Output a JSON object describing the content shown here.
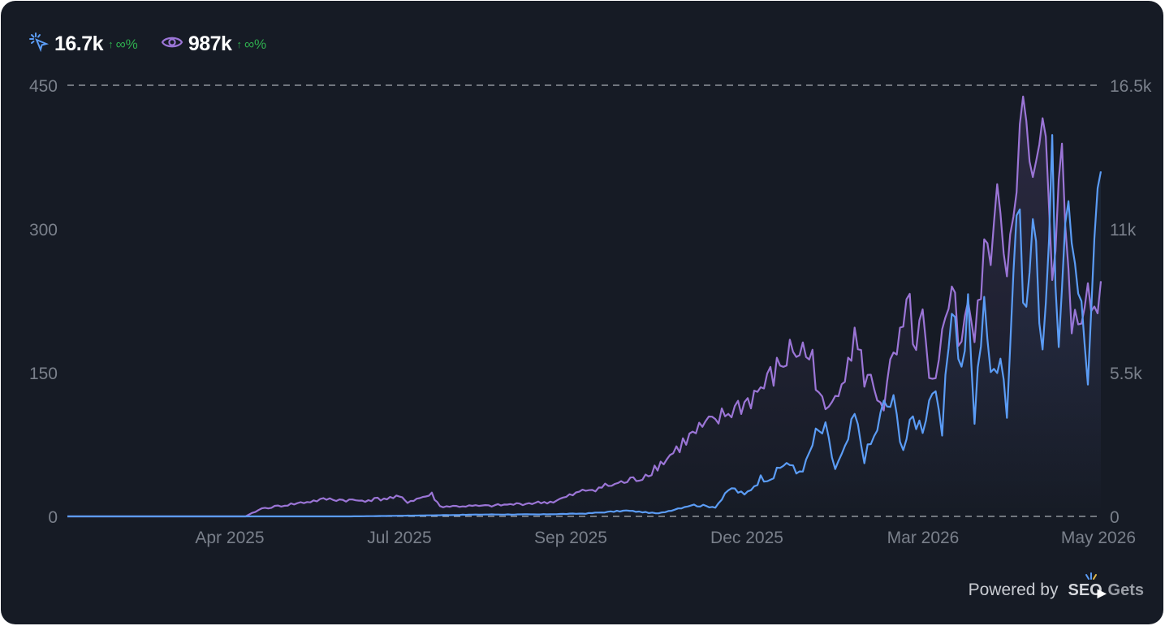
{
  "metrics": [
    {
      "name": "clicks",
      "icon": "cursor-click-icon",
      "value": "16.7k",
      "change": "∞%",
      "color": "#5b9cf5"
    },
    {
      "name": "impressions",
      "icon": "eye-icon",
      "value": "987k",
      "change": "∞%",
      "color": "#9b75d6"
    }
  ],
  "footer": {
    "powered_by": "Powered by",
    "brand_a": "SEO",
    "brand_b": "Gets"
  },
  "chart_data": {
    "type": "line",
    "x_tick_labels": [
      "Apr 2025",
      "Jul 2025",
      "Sep 2025",
      "Dec 2025",
      "Mar 2026",
      "May 2026"
    ],
    "y_left": {
      "ticks": [
        "0",
        "150",
        "300",
        "450"
      ],
      "range": [
        0,
        450
      ]
    },
    "y_right": {
      "ticks": [
        "0",
        "5.5k",
        "11k",
        "16.5k"
      ],
      "range": [
        0,
        16500
      ]
    },
    "grid": "dashed lines at 0 and max only",
    "x_range_days": [
      0,
      449
    ],
    "series": [
      {
        "name": "clicks",
        "axis": "left",
        "color": "#5b9cf5",
        "points": [
          [
            0,
            0
          ],
          [
            175,
            0
          ],
          [
            220,
            1
          ],
          [
            260,
            2
          ],
          [
            290,
            2
          ],
          [
            320,
            3
          ],
          [
            345,
            6
          ],
          [
            365,
            3
          ],
          [
            385,
            12
          ],
          [
            400,
            10
          ],
          [
            410,
            30
          ],
          [
            418,
            22
          ],
          [
            428,
            40
          ],
          [
            436,
            42
          ],
          [
            444,
            58
          ],
          [
            450,
            45
          ],
          [
            456,
            55
          ],
          [
            462,
            85
          ],
          [
            468,
            90
          ],
          [
            474,
            50
          ],
          [
            480,
            68
          ],
          [
            486,
            105
          ],
          [
            492,
            62
          ],
          [
            498,
            82
          ],
          [
            504,
            115
          ],
          [
            510,
            118
          ],
          [
            516,
            72
          ],
          [
            522,
            102
          ],
          [
            528,
            95
          ],
          [
            534,
            135
          ],
          [
            540,
            85
          ],
          [
            546,
            230
          ],
          [
            552,
            150
          ],
          [
            556,
            215
          ],
          [
            560,
            100
          ],
          [
            566,
            240
          ],
          [
            570,
            140
          ],
          [
            576,
            180
          ],
          [
            580,
            110
          ],
          [
            586,
            330
          ],
          [
            592,
            210
          ],
          [
            596,
            310
          ],
          [
            602,
            180
          ],
          [
            608,
            360
          ],
          [
            612,
            170
          ],
          [
            618,
            330
          ],
          [
            624,
            250
          ],
          [
            630,
            148
          ],
          [
            634,
            270
          ],
          [
            638,
            360
          ]
        ]
      },
      {
        "name": "impressions",
        "axis": "right",
        "color": "#9b75d6",
        "points": [
          [
            0,
            0
          ],
          [
            110,
            0
          ],
          [
            120,
            300
          ],
          [
            140,
            480
          ],
          [
            160,
            660
          ],
          [
            180,
            600
          ],
          [
            205,
            730
          ],
          [
            210,
            560
          ],
          [
            225,
            840
          ],
          [
            230,
            380
          ],
          [
            260,
            400
          ],
          [
            285,
            500
          ],
          [
            300,
            560
          ],
          [
            320,
            1000
          ],
          [
            340,
            1250
          ],
          [
            355,
            1500
          ],
          [
            370,
            2200
          ],
          [
            380,
            2800
          ],
          [
            390,
            3300
          ],
          [
            400,
            3600
          ],
          [
            410,
            4050
          ],
          [
            420,
            4400
          ],
          [
            430,
            5000
          ],
          [
            436,
            5400
          ],
          [
            442,
            5900
          ],
          [
            448,
            6400
          ],
          [
            454,
            6300
          ],
          [
            460,
            6000
          ],
          [
            466,
            4200
          ],
          [
            470,
            3900
          ],
          [
            476,
            5100
          ],
          [
            482,
            6100
          ],
          [
            486,
            6800
          ],
          [
            492,
            5400
          ],
          [
            498,
            4900
          ],
          [
            504,
            4300
          ],
          [
            508,
            5500
          ],
          [
            512,
            6200
          ],
          [
            516,
            7000
          ],
          [
            520,
            8000
          ],
          [
            524,
            6200
          ],
          [
            528,
            7500
          ],
          [
            532,
            5000
          ],
          [
            536,
            4800
          ],
          [
            542,
            7600
          ],
          [
            546,
            9500
          ],
          [
            550,
            6400
          ],
          [
            556,
            8500
          ],
          [
            560,
            6500
          ],
          [
            566,
            9800
          ],
          [
            570,
            10500
          ],
          [
            576,
            12000
          ],
          [
            580,
            9500
          ],
          [
            584,
            12500
          ],
          [
            590,
            15200
          ],
          [
            594,
            13000
          ],
          [
            598,
            12800
          ],
          [
            604,
            14800
          ],
          [
            608,
            9800
          ],
          [
            614,
            13300
          ],
          [
            620,
            7300
          ],
          [
            624,
            8000
          ],
          [
            628,
            8500
          ],
          [
            634,
            7900
          ],
          [
            638,
            9000
          ]
        ]
      }
    ]
  }
}
